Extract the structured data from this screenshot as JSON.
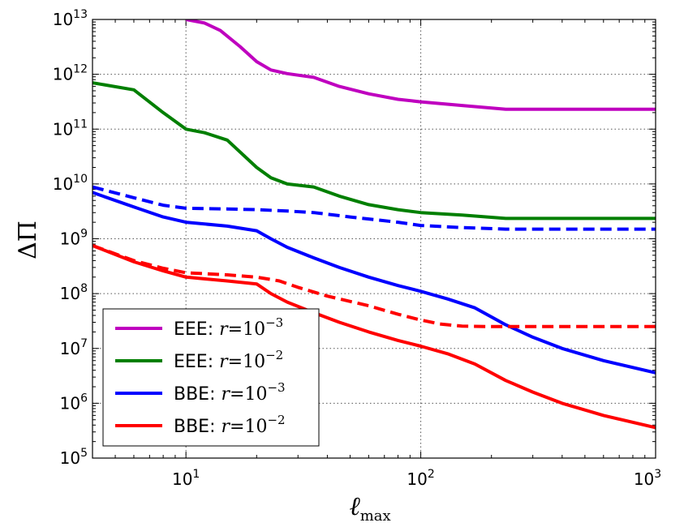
{
  "chart_data": {
    "type": "line",
    "title": "",
    "xlabel": "ℓ",
    "xlabel_sub": "max",
    "ylabel": "ΔΠ",
    "xscale": "log",
    "yscale": "log",
    "xlim": [
      4,
      1000
    ],
    "ylim": [
      100000,
      10000000000000
    ],
    "grid": true,
    "legend_position": "lower-left",
    "x_ticks": [
      {
        "base": "10",
        "exp": "1",
        "value": 10
      },
      {
        "base": "10",
        "exp": "2",
        "value": 100
      },
      {
        "base": "10",
        "exp": "3",
        "value": 1000
      }
    ],
    "y_ticks": [
      {
        "base": "10",
        "exp": "5",
        "value": 100000
      },
      {
        "base": "10",
        "exp": "6",
        "value": 1000000
      },
      {
        "base": "10",
        "exp": "7",
        "value": 10000000
      },
      {
        "base": "10",
        "exp": "8",
        "value": 100000000
      },
      {
        "base": "10",
        "exp": "9",
        "value": 1000000000
      },
      {
        "base": "10",
        "exp": "10",
        "value": 10000000000
      },
      {
        "base": "10",
        "exp": "11",
        "value": 100000000000
      },
      {
        "base": "10",
        "exp": "12",
        "value": 1000000000000
      },
      {
        "base": "10",
        "exp": "13",
        "value": 10000000000000
      }
    ],
    "series": [
      {
        "name": "EEE: r=10^-3",
        "label_prefix": "EEE: ",
        "label_r": "r",
        "label_eq": "=10",
        "label_exp": "−3",
        "color": "#bf00bf",
        "dashed": false,
        "in_legend": true,
        "x": [
          10,
          12,
          14,
          17,
          20,
          23,
          27,
          35,
          45,
          60,
          80,
          100,
          150,
          230,
          300,
          500,
          1000
        ],
        "y": [
          10000000000000.0,
          8600000000000.0,
          6300000000000.0,
          3200000000000.0,
          1700000000000.0,
          1200000000000.0,
          1030000000000.0,
          880000000000.0,
          600000000000.0,
          440000000000.0,
          350000000000.0,
          315000000000.0,
          270000000000.0,
          230000000000.0,
          230000000000.0,
          230000000000.0,
          230000000000.0
        ]
      },
      {
        "name": "EEE: r=10^-2",
        "label_prefix": "EEE: ",
        "label_r": "r",
        "label_eq": "=10",
        "label_exp": "−2",
        "color": "#007f00",
        "dashed": false,
        "in_legend": true,
        "x": [
          4,
          6,
          8,
          10,
          12,
          15,
          20,
          23,
          27,
          35,
          45,
          60,
          80,
          100,
          150,
          230,
          300,
          500,
          1000
        ],
        "y": [
          700000000000.0,
          520000000000.0,
          200000000000.0,
          100000000000.0,
          86000000000.0,
          63000000000.0,
          20000000000.0,
          13000000000.0,
          10000000000.0,
          8800000000.0,
          6000000000.0,
          4200000000.0,
          3400000000.0,
          3000000000.0,
          2700000000.0,
          2350000000.0,
          2350000000.0,
          2350000000.0,
          2350000000.0
        ]
      },
      {
        "name": "BBE: r=10^-3",
        "label_prefix": "BBE: ",
        "label_r": "r",
        "label_eq": "=10",
        "label_exp": "−3",
        "color": "#0000ff",
        "dashed": false,
        "in_legend": true,
        "x": [
          4,
          6,
          8,
          10,
          15,
          20,
          23,
          27,
          35,
          45,
          60,
          80,
          100,
          130,
          170,
          230,
          300,
          400,
          600,
          1000
        ],
        "y": [
          7000000000.0,
          3800000000.0,
          2500000000.0,
          2000000000.0,
          1700000000.0,
          1400000000.0,
          1000000000.0,
          700000000.0,
          450000000.0,
          300000000.0,
          200000000.0,
          140000000.0,
          110000000.0,
          80000000.0,
          55000000.0,
          27000000.0,
          16000000.0,
          10000000.0,
          6000000.0,
          3600000.0
        ]
      },
      {
        "name": "BBE: r=10^-3 (dashed)",
        "label_prefix": "",
        "label_r": "",
        "label_eq": "",
        "label_exp": "",
        "color": "#0000ff",
        "dashed": true,
        "in_legend": false,
        "x": [
          4,
          6,
          8,
          10,
          15,
          20,
          27,
          35,
          50,
          80,
          100,
          150,
          230,
          400,
          1000
        ],
        "y": [
          8800000000.0,
          5600000000.0,
          4100000000.0,
          3600000000.0,
          3500000000.0,
          3400000000.0,
          3200000000.0,
          3000000000.0,
          2500000000.0,
          2000000000.0,
          1750000000.0,
          1600000000.0,
          1500000000.0,
          1500000000.0,
          1500000000.0
        ]
      },
      {
        "name": "BBE: r=10^-2",
        "label_prefix": "BBE: ",
        "label_r": "r",
        "label_eq": "=10",
        "label_exp": "−2",
        "color": "#ff0000",
        "dashed": false,
        "in_legend": true,
        "x": [
          4,
          6,
          8,
          10,
          15,
          20,
          23,
          27,
          35,
          45,
          60,
          80,
          100,
          130,
          170,
          230,
          300,
          400,
          600,
          1000
        ],
        "y": [
          750000000.0,
          380000000.0,
          260000000.0,
          200000000.0,
          170000000.0,
          150000000.0,
          100000000.0,
          70000000.0,
          45000000.0,
          30000000.0,
          20000000.0,
          14000000.0,
          11000000.0,
          8000000.0,
          5200000.0,
          2600000.0,
          1600000.0,
          1000000.0,
          600000.0,
          360000.0
        ]
      },
      {
        "name": "BBE: r=10^-2 (dashed)",
        "label_prefix": "",
        "label_r": "",
        "label_eq": "",
        "label_exp": "",
        "color": "#ff0000",
        "dashed": true,
        "in_legend": false,
        "x": [
          4,
          6,
          8,
          10,
          15,
          20,
          25,
          30,
          40,
          60,
          80,
          100,
          120,
          150,
          200,
          300,
          500,
          1000
        ],
        "y": [
          750000000.0,
          400000000.0,
          290000000.0,
          240000000.0,
          220000000.0,
          200000000.0,
          170000000.0,
          130000000.0,
          90000000.0,
          60000000.0,
          42000000.0,
          33000000.0,
          28000000.0,
          25500000.0,
          25000000.0,
          25000000.0,
          25000000.0,
          25000000.0
        ]
      }
    ]
  }
}
